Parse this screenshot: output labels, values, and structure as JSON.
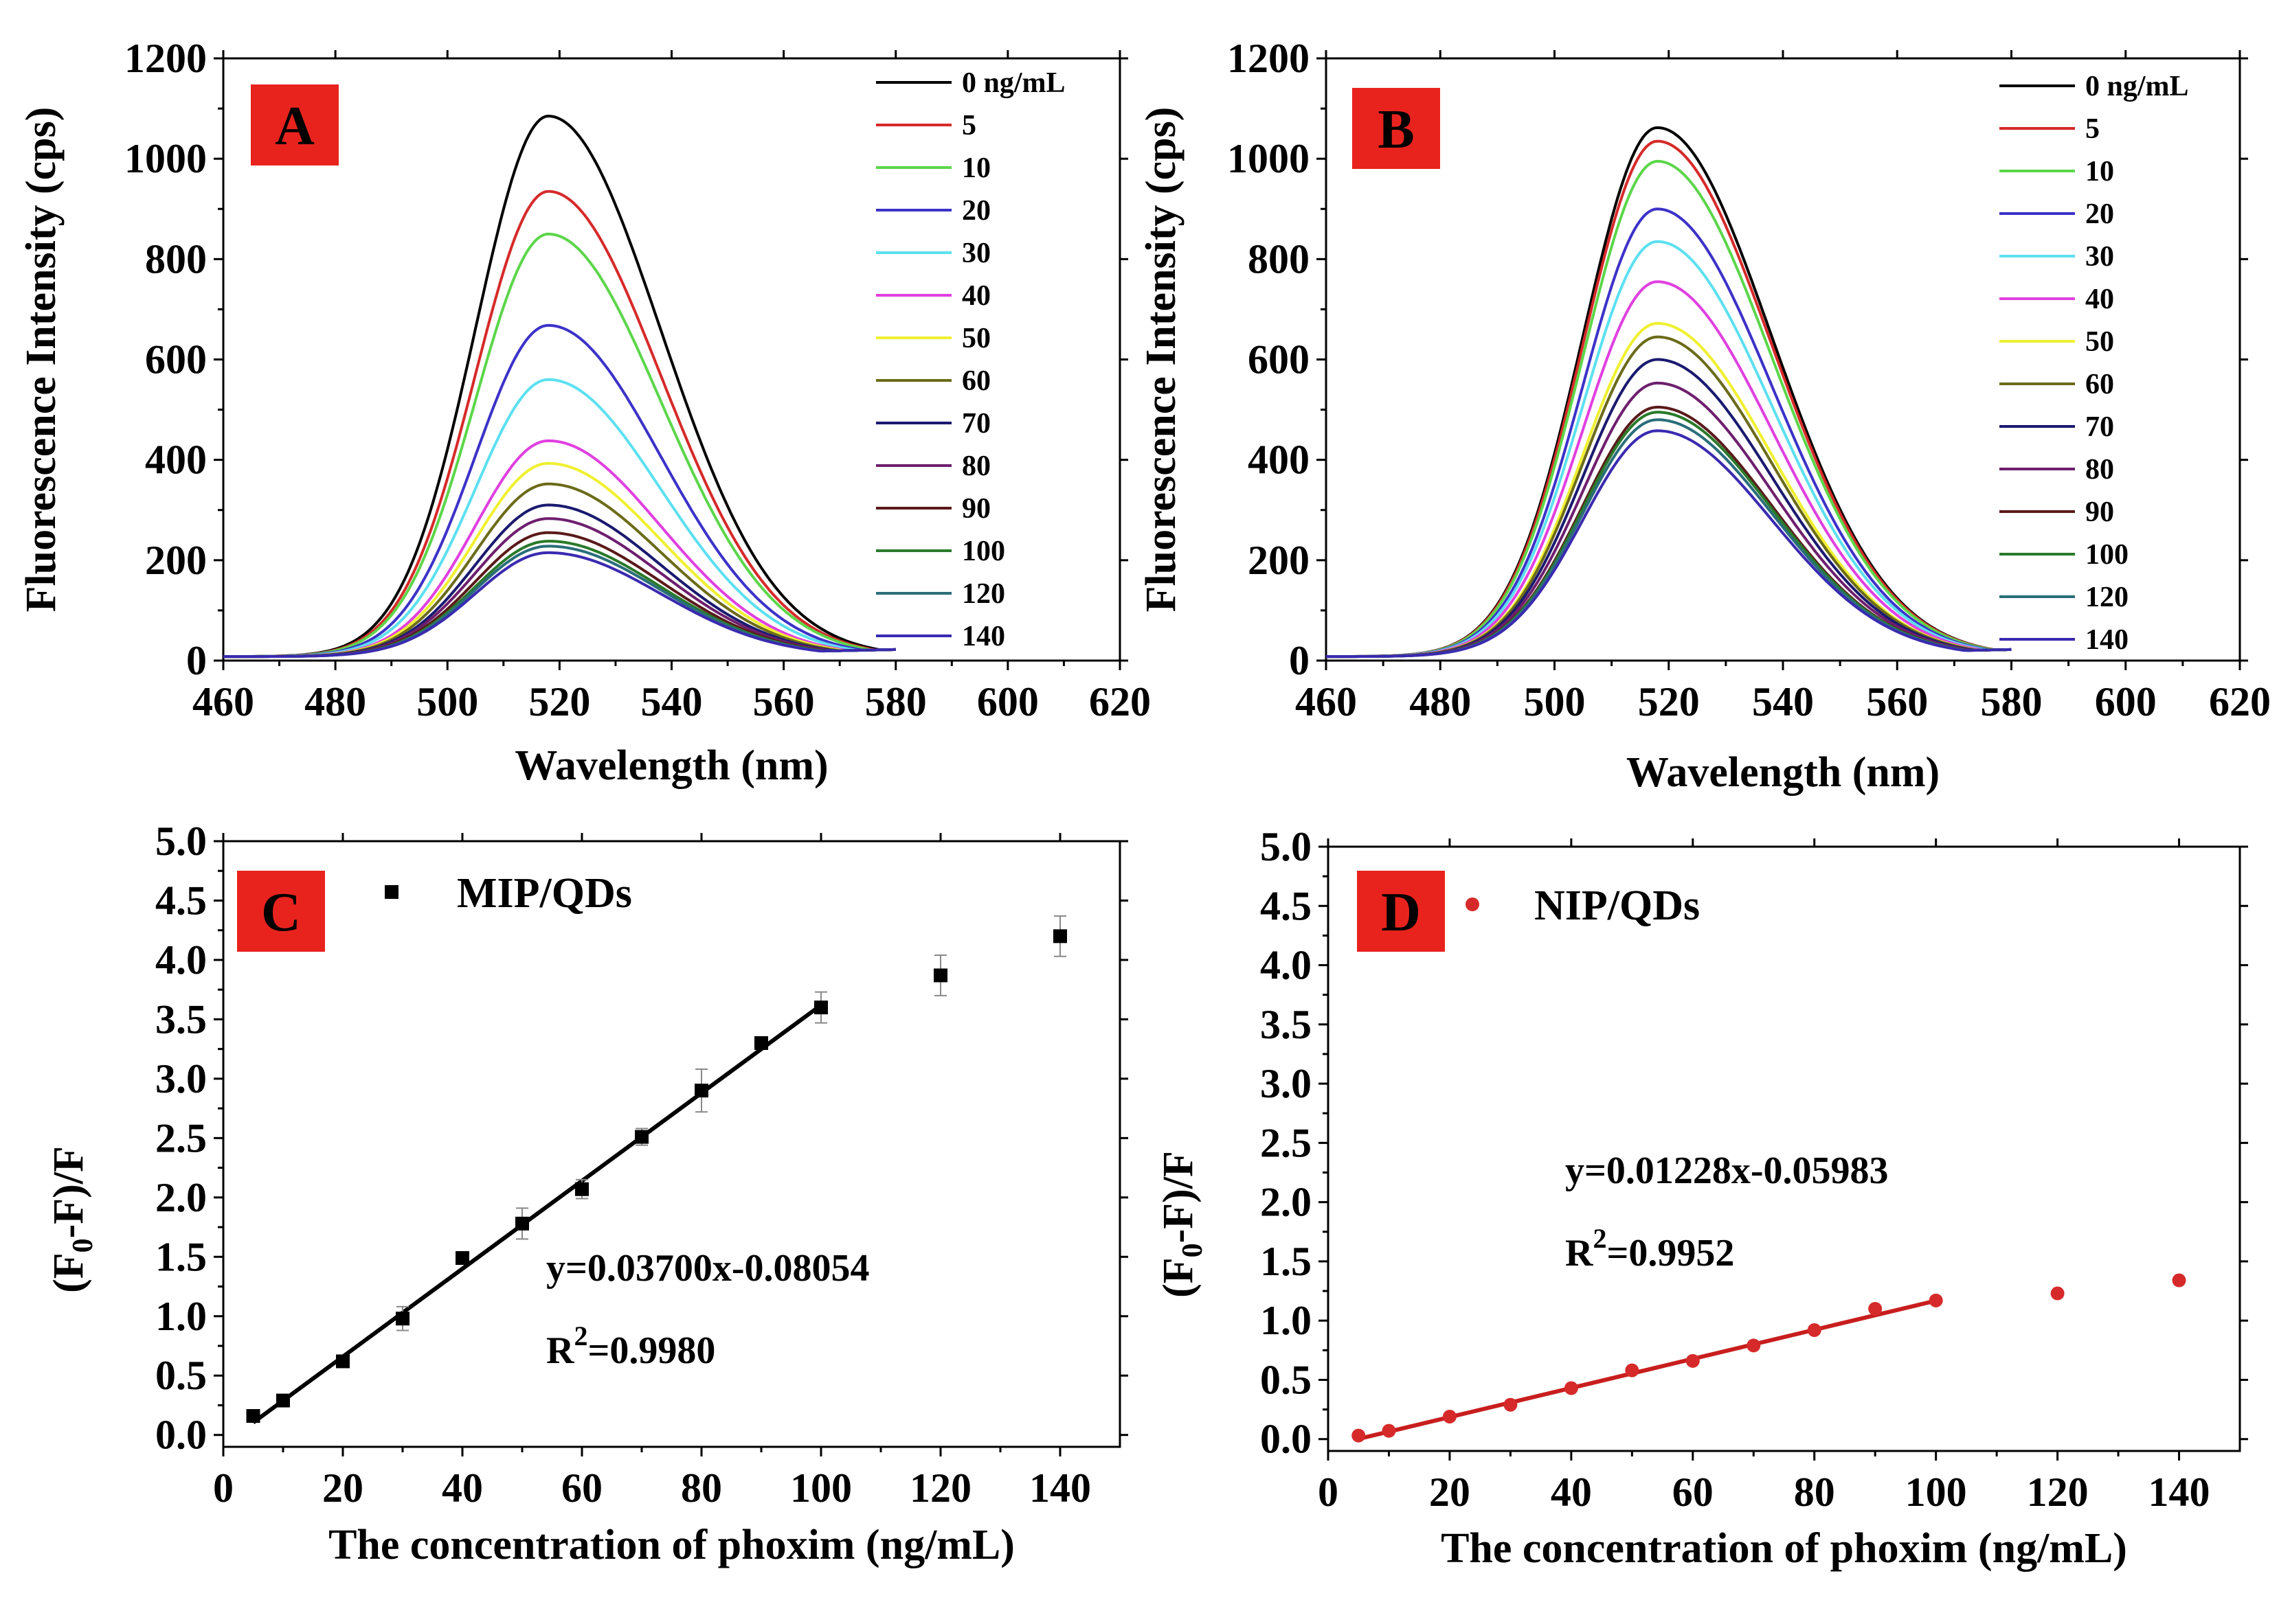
{
  "panels": [
    {
      "id": "A",
      "type": "line",
      "letter": "A",
      "xlabel": "Wavelength (nm)",
      "ylabel": "Fluorescence Intensity (cps)",
      "xlim": [
        460,
        620
      ],
      "ylim": [
        0,
        1200
      ],
      "xticks": [
        460,
        480,
        500,
        520,
        540,
        560,
        580,
        600,
        620
      ],
      "yticks": [
        0,
        200,
        400,
        600,
        800,
        1000,
        1200
      ],
      "x_range": [
        460,
        580
      ],
      "legend_position": "top-right",
      "peak_center": 518,
      "baseline": 8,
      "tail_value": 22,
      "series": [
        {
          "name": "0 ng/mL",
          "color": "#000000",
          "peak": 1085
        },
        {
          "name": "5",
          "color": "#d62a2a",
          "peak": 935
        },
        {
          "name": "10",
          "color": "#5cd64a",
          "peak": 850
        },
        {
          "name": "20",
          "color": "#3c32c8",
          "peak": 668
        },
        {
          "name": "30",
          "color": "#5ce0f0",
          "peak": 560
        },
        {
          "name": "40",
          "color": "#e040e0",
          "peak": 438
        },
        {
          "name": "50",
          "color": "#f0f030",
          "peak": 393
        },
        {
          "name": "60",
          "color": "#6b6b1a",
          "peak": 352
        },
        {
          "name": "70",
          "color": "#1a1a70",
          "peak": 310
        },
        {
          "name": "80",
          "color": "#6e1f6e",
          "peak": 283
        },
        {
          "name": "90",
          "color": "#5a1a1a",
          "peak": 255
        },
        {
          "name": "100",
          "color": "#2a7a2a",
          "peak": 238
        },
        {
          "name": "120",
          "color": "#2a6e7a",
          "peak": 228
        },
        {
          "name": "140",
          "color": "#3a2ab0",
          "peak": 215
        }
      ]
    },
    {
      "id": "B",
      "type": "line",
      "letter": "B",
      "xlabel": "Wavelength (nm)",
      "ylabel": "Fluorescence Intensity (cps)",
      "xlim": [
        460,
        620
      ],
      "ylim": [
        0,
        1200
      ],
      "xticks": [
        460,
        480,
        500,
        520,
        540,
        560,
        580,
        600,
        620
      ],
      "yticks": [
        0,
        200,
        400,
        600,
        800,
        1000,
        1200
      ],
      "x_range": [
        460,
        580
      ],
      "legend_position": "top-right",
      "peak_center": 518,
      "baseline": 8,
      "tail_value": 22,
      "series": [
        {
          "name": "0 ng/mL",
          "color": "#000000",
          "peak": 1062
        },
        {
          "name": "5",
          "color": "#d62a2a",
          "peak": 1035
        },
        {
          "name": "10",
          "color": "#5cd64a",
          "peak": 995
        },
        {
          "name": "20",
          "color": "#3c32c8",
          "peak": 900
        },
        {
          "name": "30",
          "color": "#5ce0f0",
          "peak": 835
        },
        {
          "name": "40",
          "color": "#e040e0",
          "peak": 755
        },
        {
          "name": "50",
          "color": "#f0f030",
          "peak": 672
        },
        {
          "name": "60",
          "color": "#6b6b1a",
          "peak": 645
        },
        {
          "name": "70",
          "color": "#1a1a70",
          "peak": 600
        },
        {
          "name": "80",
          "color": "#6e1f6e",
          "peak": 553
        },
        {
          "name": "90",
          "color": "#5a1a1a",
          "peak": 505
        },
        {
          "name": "100",
          "color": "#2a7a2a",
          "peak": 495
        },
        {
          "name": "120",
          "color": "#2a6e7a",
          "peak": 480
        },
        {
          "name": "140",
          "color": "#3a2ab0",
          "peak": 458
        }
      ]
    },
    {
      "id": "C",
      "type": "scatter",
      "letter": "C",
      "xlabel": "The concentration of phoxim (ng/mL)",
      "ylabel_main": "(F",
      "ylabel_sub": "0",
      "ylabel_rest": "-F)/F",
      "xlim": [
        0,
        150
      ],
      "ylim": [
        -0.1,
        5.0
      ],
      "xticks": [
        0,
        20,
        40,
        60,
        80,
        100,
        120,
        140
      ],
      "yticks": [
        0.0,
        0.5,
        1.0,
        1.5,
        2.0,
        2.5,
        3.0,
        3.5,
        4.0,
        4.5,
        5.0
      ],
      "ytick_labels": [
        "0.0",
        "0.5",
        "1.0",
        "1.5",
        "2.0",
        "2.5",
        "3.0",
        "3.5",
        "4.0",
        "4.5",
        "5.0"
      ],
      "series_name": "MIP/QDs",
      "marker": "square",
      "color": "#000000",
      "points": [
        {
          "x": 5,
          "y": 0.16,
          "err": 0.04
        },
        {
          "x": 10,
          "y": 0.29,
          "err": 0.03
        },
        {
          "x": 20,
          "y": 0.62,
          "err": 0.04
        },
        {
          "x": 30,
          "y": 0.98,
          "err": 0.1
        },
        {
          "x": 40,
          "y": 1.49,
          "err": 0.05
        },
        {
          "x": 50,
          "y": 1.78,
          "err": 0.13
        },
        {
          "x": 60,
          "y": 2.07,
          "err": 0.08
        },
        {
          "x": 70,
          "y": 2.51,
          "err": 0.07
        },
        {
          "x": 80,
          "y": 2.9,
          "err": 0.18
        },
        {
          "x": 90,
          "y": 3.3,
          "err": 0.05
        },
        {
          "x": 100,
          "y": 3.6,
          "err": 0.13
        },
        {
          "x": 120,
          "y": 3.87,
          "err": 0.17
        },
        {
          "x": 140,
          "y": 4.2,
          "err": 0.17
        }
      ],
      "fit": {
        "slope": 0.037,
        "intercept": -0.08054,
        "x_start": 5,
        "x_end": 100,
        "color": "#000000"
      },
      "equation": "y=0.03700x-0.08054",
      "r2_prefix": "R",
      "r2_sup": "2",
      "r2_value": "=0.9980",
      "equation_position": "center-right"
    },
    {
      "id": "D",
      "type": "scatter",
      "letter": "D",
      "xlabel": "The concentration of phoxim (ng/mL)",
      "ylabel_main": "(F",
      "ylabel_sub": "0",
      "ylabel_rest": "-F)/F",
      "xlim": [
        0,
        150
      ],
      "ylim": [
        -0.1,
        5.0
      ],
      "xticks": [
        0,
        20,
        40,
        60,
        80,
        100,
        120,
        140
      ],
      "yticks": [
        0.0,
        0.5,
        1.0,
        1.5,
        2.0,
        2.5,
        3.0,
        3.5,
        4.0,
        4.5,
        5.0
      ],
      "ytick_labels": [
        "0.0",
        "0.5",
        "1.0",
        "1.5",
        "2.0",
        "2.5",
        "3.0",
        "3.5",
        "4.0",
        "4.5",
        "5.0"
      ],
      "series_name": "NIP/QDs",
      "marker": "circle",
      "color": "#d62a2a",
      "points": [
        {
          "x": 5,
          "y": 0.03
        },
        {
          "x": 10,
          "y": 0.07
        },
        {
          "x": 20,
          "y": 0.19
        },
        {
          "x": 30,
          "y": 0.29
        },
        {
          "x": 40,
          "y": 0.43
        },
        {
          "x": 50,
          "y": 0.58
        },
        {
          "x": 60,
          "y": 0.66
        },
        {
          "x": 70,
          "y": 0.79
        },
        {
          "x": 80,
          "y": 0.92
        },
        {
          "x": 90,
          "y": 1.1
        },
        {
          "x": 100,
          "y": 1.17
        },
        {
          "x": 120,
          "y": 1.23
        },
        {
          "x": 140,
          "y": 1.34
        }
      ],
      "fit": {
        "slope": 0.01228,
        "intercept": -0.05983,
        "x_start": 5,
        "x_end": 100,
        "color": "#c81e1e"
      },
      "equation": "y=0.01228x-0.05983",
      "r2_prefix": "R",
      "r2_sup": "2",
      "r2_value": "=0.9952",
      "equation_position": "center"
    }
  ],
  "colors": {
    "panel_label_bg": "#e8231e",
    "axis": "#000000"
  }
}
